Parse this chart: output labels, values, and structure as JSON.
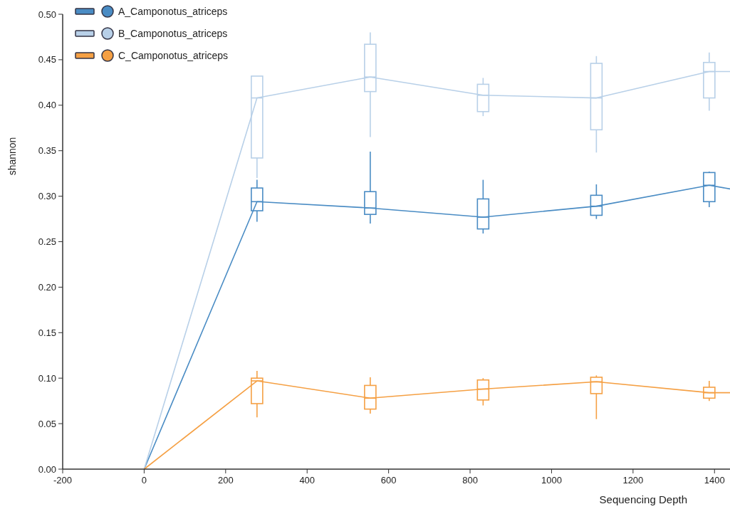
{
  "chart_data": {
    "type": "line",
    "xlabel": "Sequencing Depth",
    "ylabel": "shannon",
    "xlim": [
      -200,
      1438
    ],
    "xticks": [
      -200,
      0,
      200,
      400,
      600,
      800,
      1000,
      1200,
      1400
    ],
    "ylim": [
      0,
      0.5
    ],
    "yticks": [
      {
        "value": 0,
        "label": "0.00"
      },
      {
        "value": 0.05,
        "label": "0.05"
      },
      {
        "value": 0.1,
        "label": "0.10"
      },
      {
        "value": 0.15,
        "label": "0.15"
      },
      {
        "value": 0.2,
        "label": "0.20"
      },
      {
        "value": 0.25,
        "label": "0.25"
      },
      {
        "value": 0.3,
        "label": "0.30"
      },
      {
        "value": 0.35,
        "label": "0.35"
      },
      {
        "value": 0.4,
        "label": "0.40"
      },
      {
        "value": 0.45,
        "label": "0.45"
      },
      {
        "value": 0.5,
        "label": "0.50"
      }
    ],
    "grid": false,
    "legend": "top left",
    "marker": "none",
    "line_style": "solid",
    "series": [
      {
        "name": "A_Camponotus_atriceps",
        "color": "#4a8cc4",
        "x": [
          0,
          277,
          555,
          832,
          1110,
          1387,
          1438
        ],
        "values": [
          0,
          0.294,
          0.287,
          0.277,
          0.289,
          0.312,
          0.308
        ]
      },
      {
        "name": "B_Camponotus_atriceps",
        "color": "#b8d0e8",
        "x": [
          0,
          277,
          555,
          832,
          1110,
          1387,
          1438
        ],
        "values": [
          0,
          0.408,
          0.431,
          0.411,
          0.408,
          0.437,
          0.437
        ]
      },
      {
        "name": "C_Camponotus_atriceps",
        "color": "#f5a044",
        "x": [
          0,
          277,
          555,
          832,
          1110,
          1387,
          1438
        ],
        "values": [
          0,
          0.097,
          0.078,
          0.088,
          0.096,
          0.084,
          0.084
        ]
      },
      {
        "type": "box",
        "color": "#4a8cc4",
        "x": [
          277,
          555,
          832,
          1110,
          1387
        ],
        "boxes": [
          {
            "low": 0.272,
            "q1": 0.284,
            "median": 0.294,
            "q3": 0.309,
            "high": 0.318
          },
          {
            "low": 0.27,
            "q1": 0.28,
            "median": 0.287,
            "q3": 0.305,
            "high": 0.349
          },
          {
            "low": 0.259,
            "q1": 0.264,
            "median": 0.277,
            "q3": 0.297,
            "high": 0.318
          },
          {
            "low": 0.275,
            "q1": 0.279,
            "median": 0.289,
            "q3": 0.301,
            "high": 0.313
          },
          {
            "low": 0.288,
            "q1": 0.294,
            "median": 0.312,
            "q3": 0.326,
            "high": 0.327
          }
        ]
      },
      {
        "type": "box",
        "color": "#b8d0e8",
        "x": [
          277,
          555,
          832,
          1110,
          1387
        ],
        "boxes": [
          {
            "low": 0.32,
            "q1": 0.342,
            "median": 0.408,
            "q3": 0.432,
            "high": 0.432
          },
          {
            "low": 0.365,
            "q1": 0.415,
            "median": 0.431,
            "q3": 0.467,
            "high": 0.48
          },
          {
            "low": 0.388,
            "q1": 0.393,
            "median": 0.411,
            "q3": 0.423,
            "high": 0.43
          },
          {
            "low": 0.348,
            "q1": 0.373,
            "median": 0.408,
            "q3": 0.446,
            "high": 0.454
          },
          {
            "low": 0.394,
            "q1": 0.408,
            "median": 0.437,
            "q3": 0.447,
            "high": 0.458
          }
        ]
      },
      {
        "type": "box",
        "color": "#f5a044",
        "x": [
          277,
          555,
          832,
          1110,
          1387
        ],
        "boxes": [
          {
            "low": 0.057,
            "q1": 0.072,
            "median": 0.097,
            "q3": 0.1,
            "high": 0.108
          },
          {
            "low": 0.061,
            "q1": 0.066,
            "median": 0.078,
            "q3": 0.092,
            "high": 0.101
          },
          {
            "low": 0.07,
            "q1": 0.076,
            "median": 0.088,
            "q3": 0.098,
            "high": 0.1
          },
          {
            "low": 0.055,
            "q1": 0.083,
            "median": 0.096,
            "q3": 0.101,
            "high": 0.103
          },
          {
            "low": 0.075,
            "q1": 0.078,
            "median": 0.084,
            "q3": 0.09,
            "high": 0.097
          }
        ]
      }
    ]
  }
}
